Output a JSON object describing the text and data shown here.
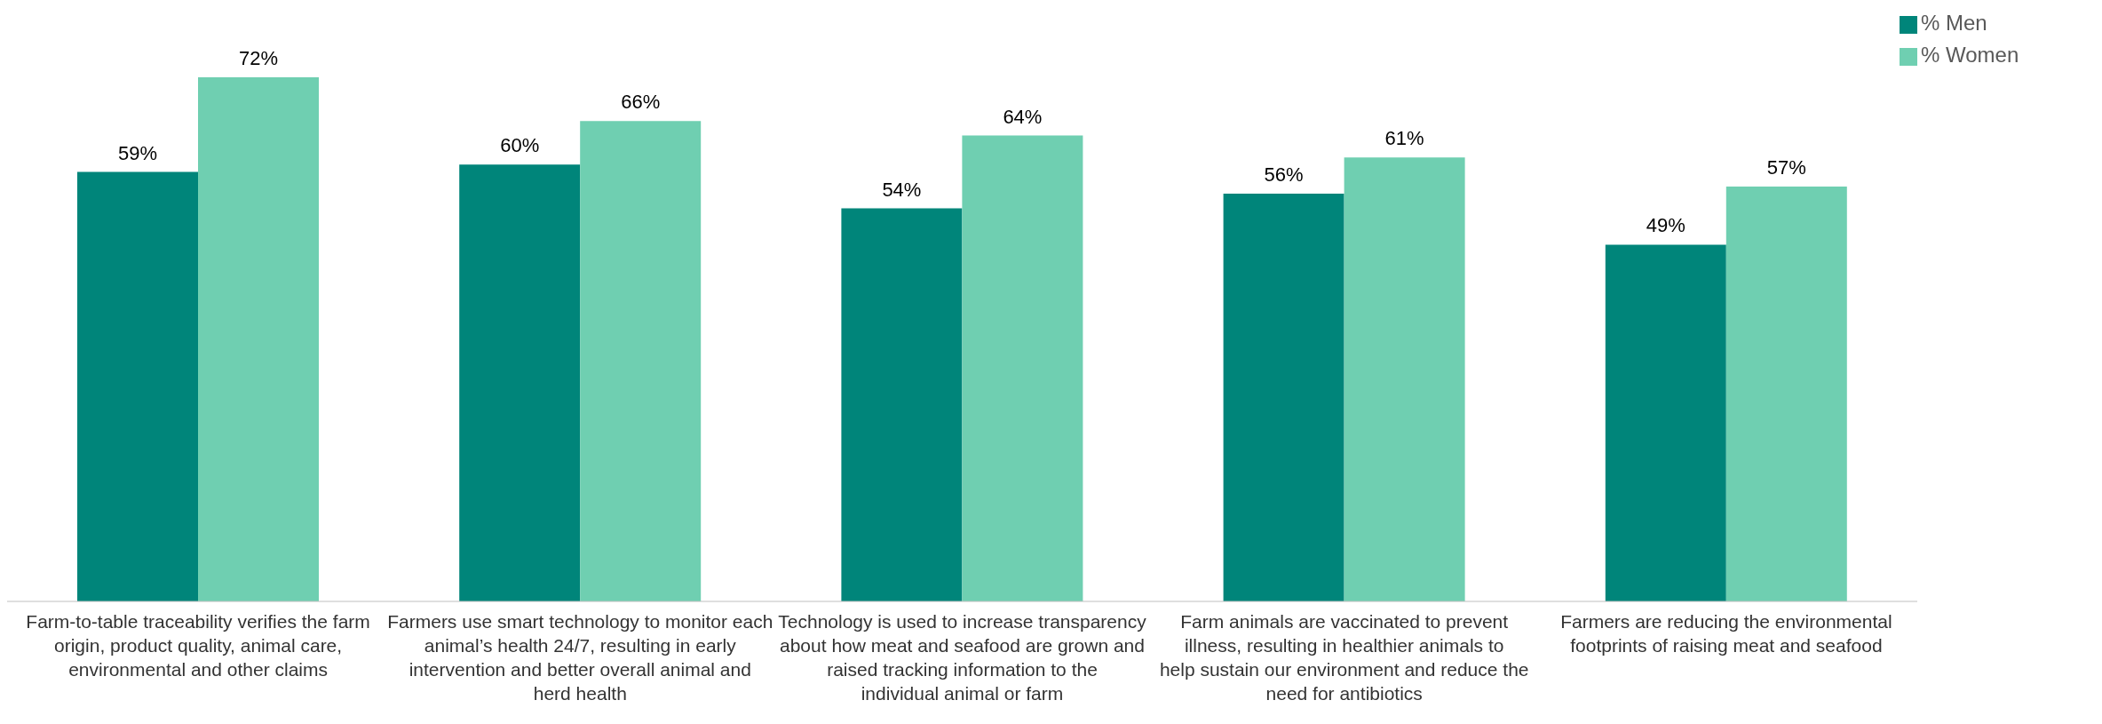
{
  "chart_data": {
    "type": "bar",
    "categories": [
      "Farm-to-table traceability verifies the farm origin, product quality, animal care, environmental and other claims",
      "Farmers use smart technology to monitor each animal’s health 24/7, resulting in early intervention and better overall animal and herd health",
      "Technology is used to increase transparency about how meat and seafood are grown and raised tracking information to the individual animal or farm",
      "Farm animals are vaccinated to prevent illness, resulting in healthier animals to help sustain our environment and reduce the need for antibiotics",
      "Farmers are reducing the environmental footprints of raising meat and seafood"
    ],
    "series": [
      {
        "name": "% Men",
        "color": "#00857a",
        "values": [
          59,
          60,
          54,
          56,
          49
        ],
        "value_labels": [
          "59%",
          "60%",
          "54%",
          "56%",
          "49%"
        ]
      },
      {
        "name": "% Women",
        "color": "#6fcfb1",
        "values": [
          72,
          66,
          64,
          61,
          57
        ],
        "value_labels": [
          "72%",
          "66%",
          "64%",
          "61%",
          "57%"
        ]
      }
    ],
    "legend": "top right",
    "grid": false,
    "tick_labels": "x"
  }
}
